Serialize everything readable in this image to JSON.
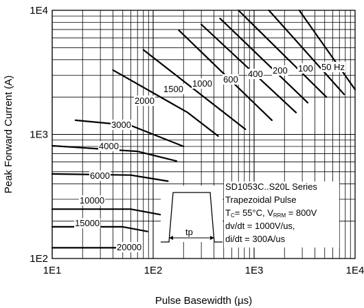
{
  "chart_data": {
    "type": "line",
    "xscale": "log",
    "yscale": "log",
    "xlim": [
      10,
      10000
    ],
    "ylim": [
      100,
      10000
    ],
    "xlabel": "Pulse Basewidth (µs)",
    "ylabel": "Peak Forward Current (A)",
    "x_tick_labels": [
      "1E1",
      "1E2",
      "1E3",
      "1E4"
    ],
    "y_tick_labels": [
      "1E2",
      "1E3",
      "1E4"
    ],
    "grid": true,
    "series": [
      {
        "name": "50 Hz",
        "points": [
          [
            2800,
            10000
          ],
          [
            10000,
            2300
          ]
        ]
      },
      {
        "name": "100",
        "points": [
          [
            1400,
            10000
          ],
          [
            7800,
            2100
          ]
        ]
      },
      {
        "name": "200",
        "points": [
          [
            700,
            10000
          ],
          [
            5200,
            2000
          ]
        ]
      },
      {
        "name": "400",
        "points": [
          [
            460,
            8600
          ],
          [
            3400,
            1800
          ]
        ]
      },
      {
        "name": "600",
        "points": [
          [
            300,
            7700
          ],
          [
            2600,
            1500
          ]
        ]
      },
      {
        "name": "1000",
        "points": [
          [
            180,
            6900
          ],
          [
            1500,
            1300
          ]
        ]
      },
      {
        "name": "1500",
        "points": [
          [
            80,
            4800
          ],
          [
            820,
            1100
          ]
        ]
      },
      {
        "name": "2000",
        "points": [
          [
            40,
            3300
          ],
          [
            220,
            1500
          ],
          [
            440,
            970
          ]
        ]
      },
      {
        "name": "3000",
        "points": [
          [
            17,
            1300
          ],
          [
            60,
            1180
          ],
          [
            200,
            800
          ]
        ]
      },
      {
        "name": "4000",
        "points": [
          [
            10,
            810
          ],
          [
            70,
            730
          ],
          [
            170,
            610
          ]
        ]
      },
      {
        "name": "6000",
        "points": [
          [
            10,
            480
          ],
          [
            60,
            470
          ],
          [
            140,
            420
          ]
        ]
      },
      {
        "name": "10000",
        "points": [
          [
            10,
            250
          ],
          [
            60,
            250
          ],
          [
            140,
            220
          ]
        ]
      },
      {
        "name": "15000",
        "points": [
          [
            10,
            180
          ],
          [
            50,
            180
          ],
          [
            88,
            165
          ]
        ]
      },
      {
        "name": "20000",
        "points": [
          [
            10,
            122
          ],
          [
            50,
            122
          ],
          [
            60,
            120
          ]
        ]
      }
    ]
  },
  "legend": {
    "line1": "SD1053C..S20L Series",
    "line2": "Trapezoidal Pulse",
    "line3_pre": "T",
    "line3_sub1": "C",
    "line3_mid": "= 55°C, V",
    "line3_sub2": "RRM",
    "line3_post": " = 800V",
    "line4": "dv/dt = 1000V/us,",
    "line5": "di/dt = 300A/us"
  },
  "pulse_label": "tp",
  "curve_labels": {
    "f50": "50 Hz",
    "f100": "100",
    "f200": "200",
    "f400": "400",
    "f600": "600",
    "f1000": "1000",
    "f1500": "1500",
    "f2000": "2000",
    "f3000": "3000",
    "f4000": "4000",
    "f6000": "6000",
    "f10000": "10000",
    "f15000": "15000",
    "f20000": "20000"
  }
}
